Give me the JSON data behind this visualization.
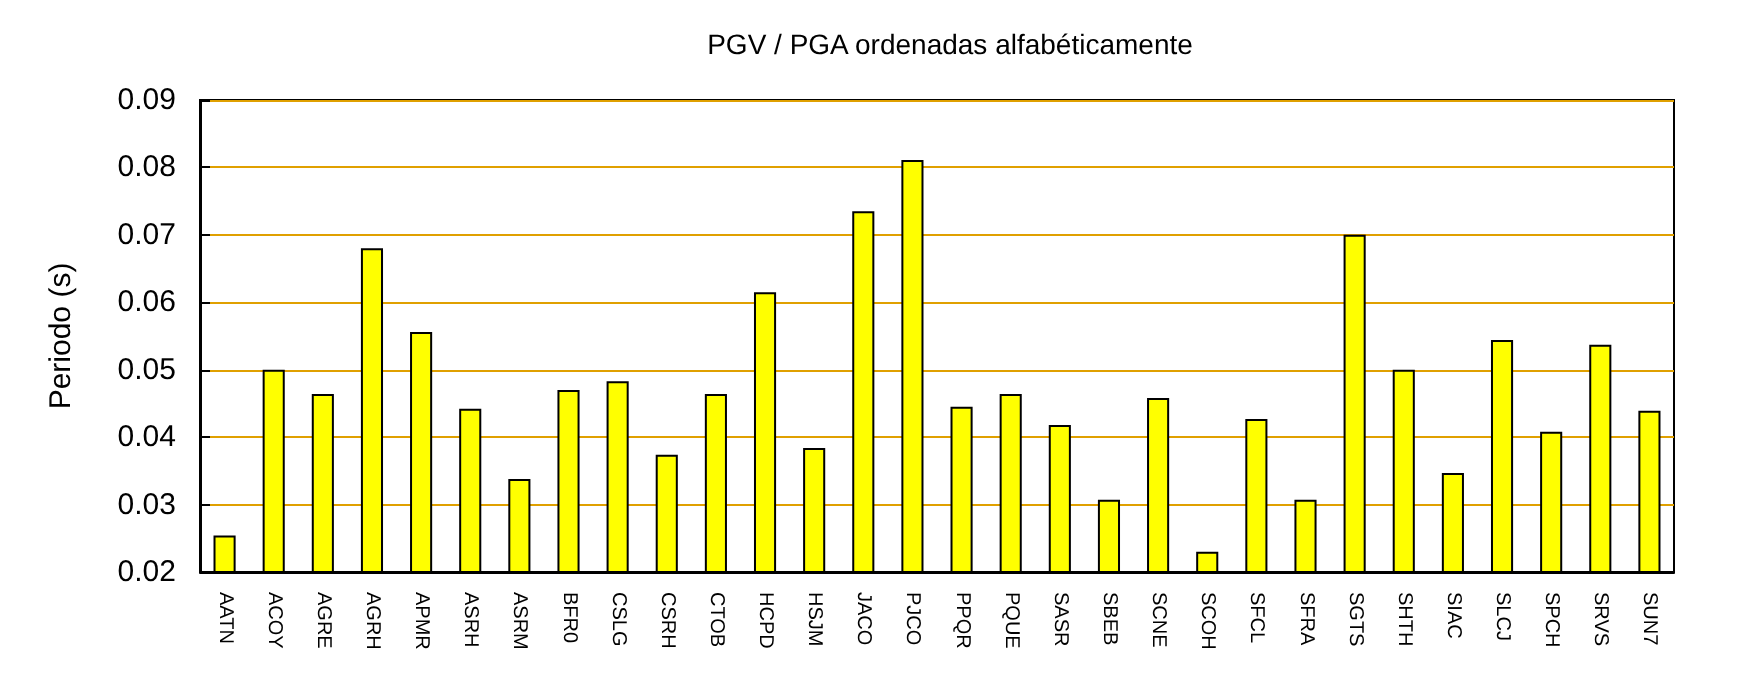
{
  "chart_data": {
    "type": "bar",
    "title": "PGV / PGA ordenadas alfabéticamente",
    "ylabel": "Periodo (s)",
    "categories": [
      "AATN",
      "ACOY",
      "AGRE",
      "AGRH",
      "APMR",
      "ASRH",
      "ASRM",
      "BFR0",
      "CSLG",
      "CSRH",
      "CTOB",
      "HCPD",
      "HSJM",
      "JACO",
      "PJCO",
      "PPQR",
      "PQUE",
      "SASR",
      "SBEB",
      "SCNE",
      "SCOH",
      "SFCL",
      "SFRA",
      "SGTS",
      "SHTH",
      "SIAC",
      "SLCJ",
      "SPCH",
      "SRVS",
      "SUN7"
    ],
    "values": [
      0.0254,
      0.05,
      0.0464,
      0.068,
      0.0556,
      0.0442,
      0.0338,
      0.047,
      0.0483,
      0.0374,
      0.0464,
      0.0615,
      0.0384,
      0.0735,
      0.0811,
      0.0445,
      0.0464,
      0.0418,
      0.0307,
      0.0458,
      0.023,
      0.0427,
      0.0307,
      0.07,
      0.05,
      0.0347,
      0.0544,
      0.0408,
      0.0537,
      0.0439
    ],
    "color": "#ffff00",
    "ylim": [
      0.02,
      0.09
    ],
    "yticks": [
      0.02,
      0.03,
      0.04,
      0.05,
      0.06,
      0.07,
      0.08,
      0.09
    ],
    "grid": "y"
  }
}
